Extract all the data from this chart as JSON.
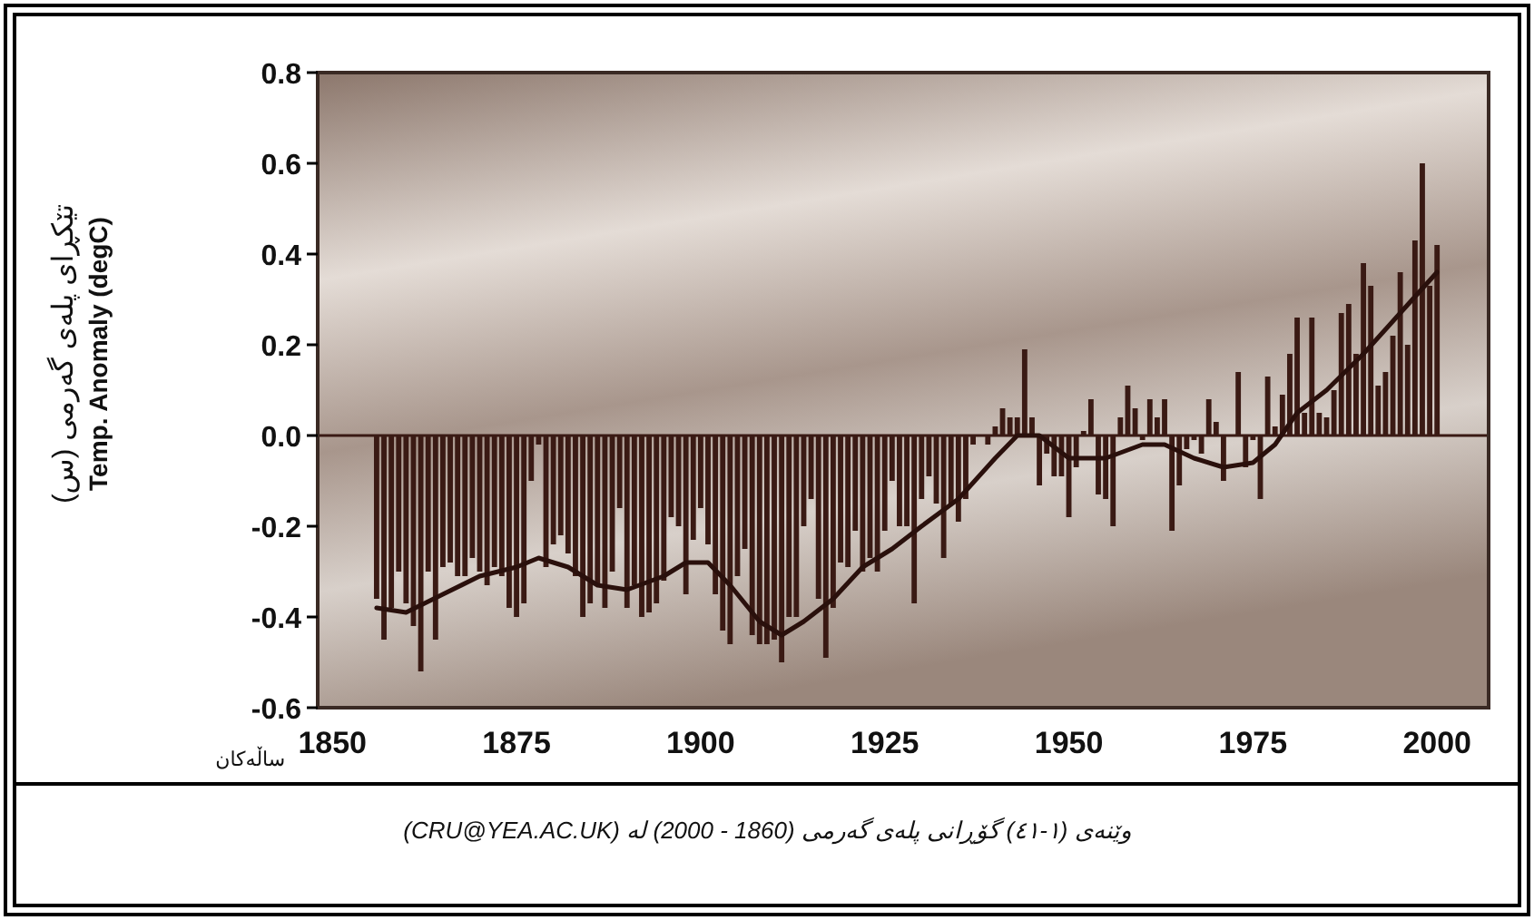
{
  "chart_data": {
    "type": "bar",
    "ylabel": "تێکڕای پلەی گەرمی (س)\nTemp. Anomaly (degC)",
    "xlabel": "ساڵەکان",
    "annotations": [
      "وێنەی (١-٤١) گۆڕانی پلەی گەرمی (1860 - 2000) لە (CRU@YEA.AC.UK)"
    ],
    "x": [
      1856,
      1857,
      1858,
      1859,
      1860,
      1861,
      1862,
      1863,
      1864,
      1865,
      1866,
      1867,
      1868,
      1869,
      1870,
      1871,
      1872,
      1873,
      1874,
      1875,
      1876,
      1877,
      1878,
      1879,
      1880,
      1881,
      1882,
      1883,
      1884,
      1885,
      1886,
      1887,
      1888,
      1889,
      1890,
      1891,
      1892,
      1893,
      1894,
      1895,
      1896,
      1897,
      1898,
      1899,
      1900,
      1901,
      1902,
      1903,
      1904,
      1905,
      1906,
      1907,
      1908,
      1909,
      1910,
      1911,
      1912,
      1913,
      1914,
      1915,
      1916,
      1917,
      1918,
      1919,
      1920,
      1921,
      1922,
      1923,
      1924,
      1925,
      1926,
      1927,
      1928,
      1929,
      1930,
      1931,
      1932,
      1933,
      1934,
      1935,
      1936,
      1937,
      1938,
      1939,
      1940,
      1941,
      1942,
      1943,
      1944,
      1945,
      1946,
      1947,
      1948,
      1949,
      1950,
      1951,
      1952,
      1953,
      1954,
      1955,
      1956,
      1957,
      1958,
      1959,
      1960,
      1961,
      1962,
      1963,
      1964,
      1965,
      1966,
      1967,
      1968,
      1969,
      1970,
      1971,
      1972,
      1973,
      1974,
      1975,
      1976,
      1977,
      1978,
      1979,
      1980,
      1981,
      1982,
      1983,
      1984,
      1985,
      1986,
      1987,
      1988,
      1989,
      1990,
      1991,
      1992,
      1993,
      1994,
      1995,
      1996,
      1997,
      1998,
      1999,
      2000
    ],
    "series": [
      {
        "color": "#3a1a14",
        "values": [
          -0.36,
          -0.45,
          -0.38,
          -0.3,
          -0.37,
          -0.42,
          -0.52,
          -0.3,
          -0.45,
          -0.29,
          -0.28,
          -0.31,
          -0.31,
          -0.27,
          -0.3,
          -0.33,
          -0.29,
          -0.31,
          -0.38,
          -0.4,
          -0.37,
          -0.1,
          -0.02,
          -0.29,
          -0.24,
          -0.22,
          -0.26,
          -0.31,
          -0.4,
          -0.37,
          -0.33,
          -0.38,
          -0.3,
          -0.16,
          -0.38,
          -0.33,
          -0.4,
          -0.39,
          -0.37,
          -0.32,
          -0.18,
          -0.2,
          -0.35,
          -0.23,
          -0.16,
          -0.24,
          -0.35,
          -0.43,
          -0.46,
          -0.31,
          -0.25,
          -0.44,
          -0.46,
          -0.46,
          -0.45,
          -0.5,
          -0.4,
          -0.4,
          -0.2,
          -0.14,
          -0.36,
          -0.49,
          -0.38,
          -0.28,
          -0.29,
          -0.21,
          -0.3,
          -0.27,
          -0.3,
          -0.21,
          -0.1,
          -0.2,
          -0.2,
          -0.37,
          -0.14,
          -0.09,
          -0.15,
          -0.27,
          -0.15,
          -0.19,
          -0.14,
          -0.02,
          0.0,
          -0.02,
          0.02,
          0.06,
          0.04,
          0.04,
          0.19,
          0.04,
          -0.11,
          -0.04,
          -0.09,
          -0.09,
          -0.18,
          -0.07,
          0.01,
          0.08,
          -0.13,
          -0.14,
          -0.2,
          0.04,
          0.11,
          0.06,
          -0.01,
          0.08,
          0.04,
          0.08,
          -0.21,
          -0.11,
          -0.03,
          -0.01,
          -0.04,
          0.08,
          0.03,
          -0.1,
          0.0,
          0.14,
          -0.07,
          -0.01,
          -0.14,
          0.13,
          0.02,
          0.09,
          0.18,
          0.26,
          0.05,
          0.26,
          0.05,
          0.04,
          0.1,
          0.27,
          0.29,
          0.18,
          0.38,
          0.33,
          0.11,
          0.14,
          0.22,
          0.36,
          0.2,
          0.43,
          0.6,
          0.33,
          0.42
        ]
      },
      {
        "type": "line",
        "color": "#2a100c",
        "x": [
          1856,
          1860,
          1865,
          1870,
          1875,
          1878,
          1882,
          1886,
          1890,
          1895,
          1898,
          1901,
          1904,
          1908,
          1911,
          1914,
          1918,
          1922,
          1926,
          1930,
          1935,
          1940,
          1943,
          1946,
          1950,
          1955,
          1960,
          1963,
          1967,
          1971,
          1975,
          1978,
          1981,
          1985,
          1990,
          1995,
          2000
        ],
        "values": [
          -0.38,
          -0.39,
          -0.35,
          -0.31,
          -0.29,
          -0.27,
          -0.29,
          -0.33,
          -0.34,
          -0.31,
          -0.28,
          -0.28,
          -0.33,
          -0.41,
          -0.44,
          -0.41,
          -0.36,
          -0.29,
          -0.25,
          -0.2,
          -0.14,
          -0.05,
          0.0,
          0.0,
          -0.05,
          -0.05,
          -0.02,
          -0.02,
          -0.05,
          -0.07,
          -0.06,
          -0.02,
          0.05,
          0.1,
          0.18,
          0.27,
          0.36
        ]
      }
    ],
    "xlim": [
      1848,
      2007
    ],
    "xticks": [
      1850,
      1875,
      1900,
      1925,
      1950,
      1975,
      2000
    ],
    "ylim": [
      -0.6,
      0.8
    ],
    "yticks": [
      {
        "value": 0.8,
        "label": "0.8"
      },
      {
        "value": 0.6,
        "label": "0.6"
      },
      {
        "value": 0.4,
        "label": "0.4"
      },
      {
        "value": 0.2,
        "label": "0.2"
      },
      {
        "value": 0,
        "label": "0.0"
      },
      {
        "value": -0.2,
        "label": "-0.2"
      },
      {
        "value": -0.4,
        "label": "-0.4"
      },
      {
        "value": -0.6,
        "label": "-0.6"
      }
    ]
  }
}
